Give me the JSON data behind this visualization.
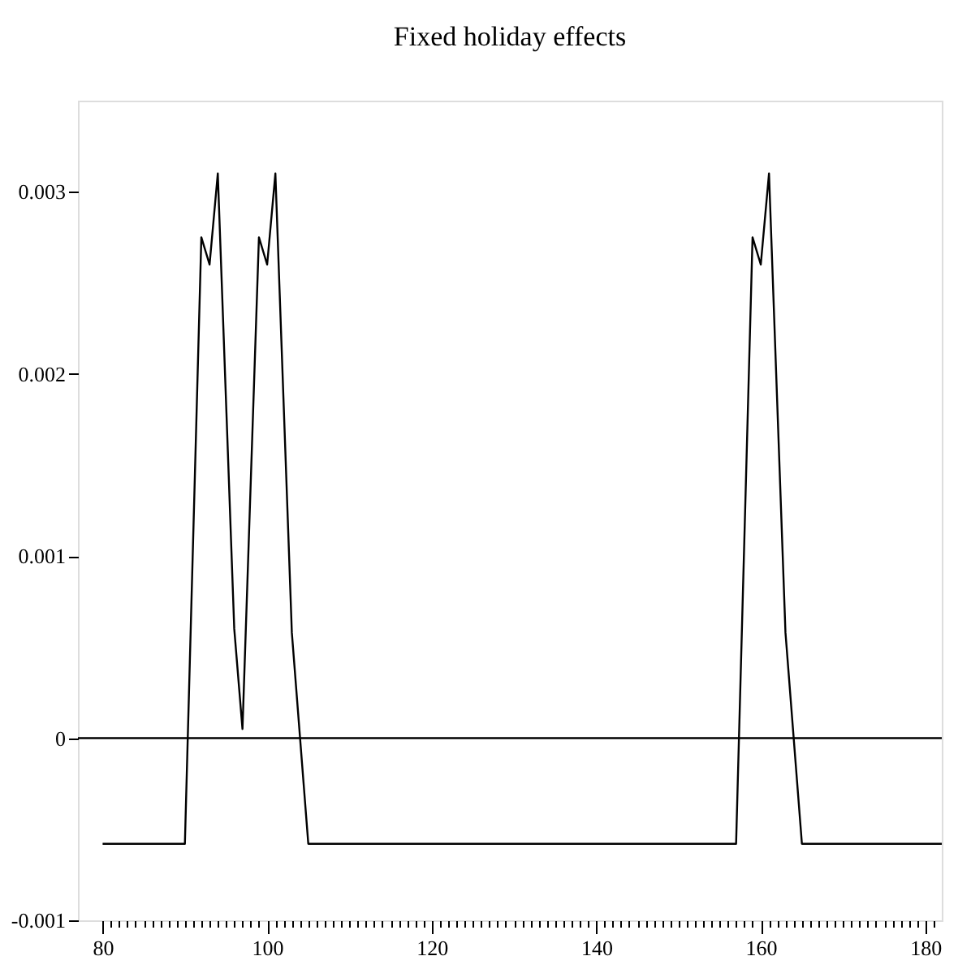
{
  "chart_data": {
    "type": "line",
    "title": "Fixed holiday effects",
    "x": [
      80,
      90,
      92,
      93,
      94,
      96,
      97,
      99,
      100,
      101,
      103,
      105,
      157,
      159,
      160,
      161,
      163,
      165,
      182
    ],
    "series": [
      {
        "color": "#000000",
        "values": [
          -0.00058,
          -0.00058,
          0.00275,
          0.0026,
          0.0031,
          0.0006,
          5e-05,
          0.00275,
          0.0026,
          0.0031,
          0.00058,
          -0.00058,
          -0.00058,
          0.00275,
          0.0026,
          0.0031,
          0.00058,
          -0.00058,
          -0.00058
        ]
      }
    ],
    "xlim": [
      77,
      182
    ],
    "ylim": [
      -0.001,
      0.0035
    ],
    "xticks": [
      80,
      {
        "value": 81,
        "label": null
      },
      {
        "value": 82,
        "label": null
      },
      {
        "value": 83,
        "label": null
      },
      {
        "value": 84,
        "label": null
      },
      {
        "value": 85,
        "label": null
      },
      {
        "value": 86,
        "label": null
      },
      {
        "value": 87,
        "label": null
      },
      {
        "value": 88,
        "label": null
      },
      {
        "value": 89,
        "label": null
      },
      {
        "value": 90,
        "label": null
      },
      {
        "value": 91,
        "label": null
      },
      {
        "value": 92,
        "label": null
      },
      {
        "value": 93,
        "label": null
      },
      {
        "value": 94,
        "label": null
      },
      {
        "value": 95,
        "label": null
      },
      {
        "value": 96,
        "label": null
      },
      {
        "value": 97,
        "label": null
      },
      {
        "value": 98,
        "label": null
      },
      {
        "value": 99,
        "label": null
      },
      100,
      {
        "value": 101,
        "label": null
      },
      {
        "value": 102,
        "label": null
      },
      {
        "value": 103,
        "label": null
      },
      {
        "value": 104,
        "label": null
      },
      {
        "value": 105,
        "label": null
      },
      {
        "value": 106,
        "label": null
      },
      {
        "value": 107,
        "label": null
      },
      {
        "value": 108,
        "label": null
      },
      {
        "value": 109,
        "label": null
      },
      {
        "value": 110,
        "label": null
      },
      {
        "value": 111,
        "label": null
      },
      {
        "value": 112,
        "label": null
      },
      {
        "value": 113,
        "label": null
      },
      {
        "value": 114,
        "label": null
      },
      {
        "value": 115,
        "label": null
      },
      {
        "value": 116,
        "label": null
      },
      {
        "value": 117,
        "label": null
      },
      {
        "value": 118,
        "label": null
      },
      {
        "value": 119,
        "label": null
      },
      120,
      {
        "value": 121,
        "label": null
      },
      {
        "value": 122,
        "label": null
      },
      {
        "value": 123,
        "label": null
      },
      {
        "value": 124,
        "label": null
      },
      {
        "value": 125,
        "label": null
      },
      {
        "value": 126,
        "label": null
      },
      {
        "value": 127,
        "label": null
      },
      {
        "value": 128,
        "label": null
      },
      {
        "value": 129,
        "label": null
      },
      {
        "value": 130,
        "label": null
      },
      {
        "value": 131,
        "label": null
      },
      {
        "value": 132,
        "label": null
      },
      {
        "value": 133,
        "label": null
      },
      {
        "value": 134,
        "label": null
      },
      {
        "value": 135,
        "label": null
      },
      {
        "value": 136,
        "label": null
      },
      {
        "value": 137,
        "label": null
      },
      {
        "value": 138,
        "label": null
      },
      {
        "value": 139,
        "label": null
      },
      140,
      {
        "value": 141,
        "label": null
      },
      {
        "value": 142,
        "label": null
      },
      {
        "value": 143,
        "label": null
      },
      {
        "value": 144,
        "label": null
      },
      {
        "value": 145,
        "label": null
      },
      {
        "value": 146,
        "label": null
      },
      {
        "value": 147,
        "label": null
      },
      {
        "value": 148,
        "label": null
      },
      {
        "value": 149,
        "label": null
      },
      {
        "value": 150,
        "label": null
      },
      {
        "value": 151,
        "label": null
      },
      {
        "value": 152,
        "label": null
      },
      {
        "value": 153,
        "label": null
      },
      {
        "value": 154,
        "label": null
      },
      {
        "value": 155,
        "label": null
      },
      {
        "value": 156,
        "label": null
      },
      {
        "value": 157,
        "label": null
      },
      {
        "value": 158,
        "label": null
      },
      {
        "value": 159,
        "label": null
      },
      160,
      {
        "value": 161,
        "label": null
      },
      {
        "value": 162,
        "label": null
      },
      {
        "value": 163,
        "label": null
      },
      {
        "value": 164,
        "label": null
      },
      {
        "value": 165,
        "label": null
      },
      {
        "value": 166,
        "label": null
      },
      {
        "value": 167,
        "label": null
      },
      {
        "value": 168,
        "label": null
      },
      {
        "value": 169,
        "label": null
      },
      {
        "value": 170,
        "label": null
      },
      {
        "value": 171,
        "label": null
      },
      {
        "value": 172,
        "label": null
      },
      {
        "value": 173,
        "label": null
      },
      {
        "value": 174,
        "label": null
      },
      {
        "value": 175,
        "label": null
      },
      {
        "value": 176,
        "label": null
      },
      {
        "value": 177,
        "label": null
      },
      {
        "value": 178,
        "label": null
      },
      {
        "value": 179,
        "label": null
      },
      180,
      {
        "value": 181,
        "label": null
      }
    ],
    "yticks": [
      -0.001,
      0,
      0.001,
      0.002,
      0.003
    ],
    "ref_lines": [
      {
        "axis": "y",
        "value": 0,
        "color": "#000000",
        "line_style": "solid"
      }
    ],
    "grid": false,
    "marker": "none",
    "line_style": "solid"
  }
}
